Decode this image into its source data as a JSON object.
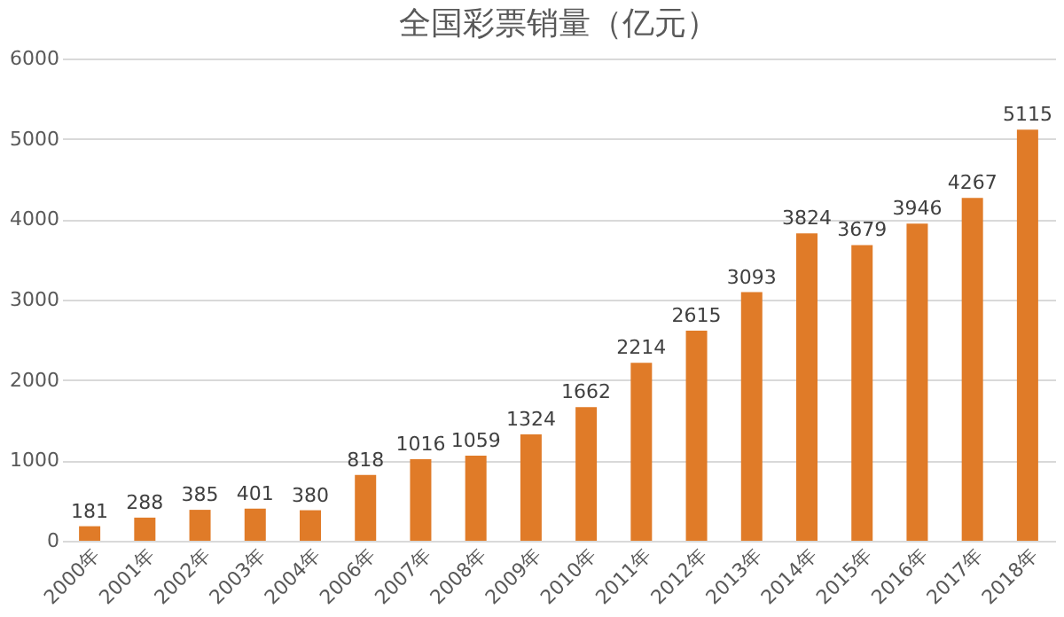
{
  "chart_data": {
    "type": "bar",
    "title": "全国彩票销量（亿元）",
    "categories": [
      "2000年",
      "2001年",
      "2002年",
      "2003年",
      "2004年",
      "2006年",
      "2007年",
      "2008年",
      "2009年",
      "2010年",
      "2011年",
      "2012年",
      "2013年",
      "2014年",
      "2015年",
      "2016年",
      "2017年",
      "2018年"
    ],
    "values": [
      181,
      288,
      385,
      401,
      380,
      818,
      1016,
      1059,
      1324,
      1662,
      2214,
      2615,
      3093,
      3824,
      3679,
      3946,
      4267,
      5115
    ],
    "color": "#e07b28",
    "ylim": [
      0,
      6000
    ],
    "yticks": [
      0,
      1000,
      2000,
      3000,
      4000,
      5000,
      6000
    ],
    "grid": "y",
    "data_labels": true
  }
}
